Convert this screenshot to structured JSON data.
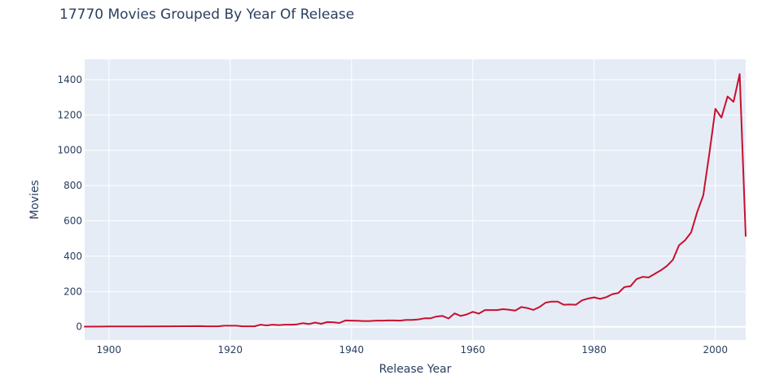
{
  "chart_data": {
    "type": "line",
    "title": "17770 Movies Grouped By Year Of Release",
    "xlabel": "Release Year",
    "ylabel": "Movies",
    "xlim": [
      1896,
      2005
    ],
    "ylim": [
      -75,
      1515
    ],
    "x_ticks": [
      1900,
      1920,
      1940,
      1960,
      1980,
      2000
    ],
    "y_ticks": [
      0,
      200,
      400,
      600,
      800,
      1000,
      1200,
      1400
    ],
    "grid": true,
    "background_color": "#e5ecf6",
    "grid_color": "#ffffff",
    "line_color": "#c8102e",
    "series": [
      {
        "x": [
          1896,
          1900,
          1905,
          1910,
          1915,
          1916,
          1918,
          1919,
          1920,
          1921,
          1922,
          1923,
          1924,
          1925,
          1926,
          1927,
          1928,
          1929,
          1930,
          1931,
          1932,
          1933,
          1934,
          1935,
          1936,
          1937,
          1938,
          1939,
          1940,
          1941,
          1942,
          1943,
          1944,
          1945,
          1946,
          1947,
          1948,
          1949,
          1950,
          1951,
          1952,
          1953,
          1954,
          1955,
          1956,
          1957,
          1958,
          1959,
          1960,
          1961,
          1962,
          1963,
          1964,
          1965,
          1966,
          1967,
          1968,
          1969,
          1970,
          1971,
          1972,
          1973,
          1974,
          1975,
          1976,
          1977,
          1978,
          1979,
          1980,
          1981,
          1982,
          1983,
          1984,
          1985,
          1986,
          1987,
          1988,
          1989,
          1990,
          1991,
          1992,
          1993,
          1994,
          1995,
          1996,
          1997,
          1998,
          1999,
          2000,
          2001,
          2002,
          2003,
          2004,
          2005
        ],
        "values": [
          1,
          2,
          2,
          3,
          4,
          3,
          3,
          6,
          6,
          6,
          3,
          3,
          3,
          12,
          8,
          12,
          10,
          12,
          12,
          14,
          21,
          16,
          24,
          17,
          27,
          26,
          22,
          36,
          35,
          34,
          33,
          33,
          35,
          35,
          36,
          36,
          35,
          39,
          39,
          42,
          48,
          48,
          58,
          62,
          47,
          76,
          62,
          70,
          85,
          75,
          95,
          95,
          95,
          100,
          97,
          92,
          112,
          106,
          96,
          112,
          137,
          143,
          143,
          125,
          127,
          125,
          150,
          160,
          167,
          158,
          168,
          185,
          192,
          225,
          230,
          270,
          283,
          280,
          300,
          320,
          345,
          380,
          462,
          490,
          535,
          650,
          745,
          980,
          1235,
          1185,
          1305,
          1275,
          1432,
          515
        ]
      }
    ]
  }
}
